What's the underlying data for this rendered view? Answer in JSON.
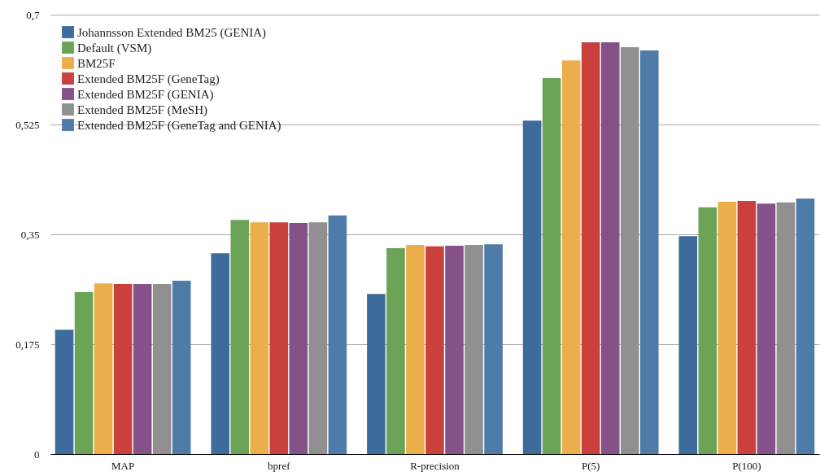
{
  "chart_data": {
    "type": "bar",
    "categories": [
      "MAP",
      "bpref",
      "R-precision",
      "P(5)",
      "P(100)"
    ],
    "series": [
      {
        "name": "Johannsson Extended BM25 (GENIA)",
        "color": "#3d6b9c",
        "values": [
          0.198,
          0.32,
          0.255,
          0.531,
          0.347
        ]
      },
      {
        "name": "Default (VSM)",
        "color": "#6ca457",
        "values": [
          0.258,
          0.373,
          0.328,
          0.599,
          0.393
        ]
      },
      {
        "name": "BM25F",
        "color": "#ecae4a",
        "values": [
          0.272,
          0.369,
          0.333,
          0.627,
          0.402
        ]
      },
      {
        "name": "Extended BM25F (GeneTag)",
        "color": "#ca403d",
        "values": [
          0.271,
          0.369,
          0.331,
          0.656,
          0.403
        ]
      },
      {
        "name": "Extended BM25F (GENIA)",
        "color": "#845189",
        "values": [
          0.271,
          0.368,
          0.332,
          0.656,
          0.399
        ]
      },
      {
        "name": "Extended BM25F (MeSH)",
        "color": "#8f908f",
        "values": [
          0.271,
          0.369,
          0.333,
          0.648,
          0.401
        ]
      },
      {
        "name": "Extended BM25F (GeneTag and GENIA)",
        "color": "#4f7ba8",
        "values": [
          0.276,
          0.38,
          0.334,
          0.643,
          0.407
        ]
      }
    ],
    "ylim": [
      0,
      0.7
    ],
    "yticks": [
      {
        "value": 0,
        "label": "0"
      },
      {
        "value": 0.175,
        "label": "0,175"
      },
      {
        "value": 0.35,
        "label": "0,35"
      },
      {
        "value": 0.525,
        "label": "0,525"
      },
      {
        "value": 0.7,
        "label": "0,7"
      }
    ],
    "grid": "y",
    "legend": "top left"
  }
}
